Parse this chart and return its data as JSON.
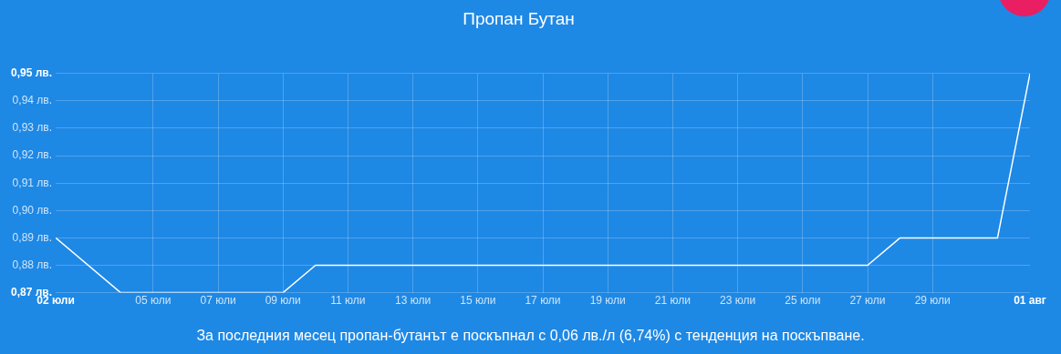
{
  "chart_data": {
    "type": "line",
    "title": "Пропан Бутан",
    "x": [
      "--07-02",
      "--07-04",
      "--07-09",
      "--07-10",
      "--07-27",
      "--07-28",
      "--07-31",
      "--08-01"
    ],
    "series": [
      {
        "color": "#ffffff",
        "values": [
          0.89,
          0.87,
          0.87,
          0.88,
          0.88,
          0.89,
          0.89,
          0.95
        ]
      }
    ],
    "xlim": [
      "--07-02",
      "--08-01"
    ],
    "xticks": [
      {
        "value": "--07-02",
        "label": "02 юли"
      },
      {
        "value": "--07-05",
        "label": "05 юли"
      },
      {
        "value": "--07-07",
        "label": "07 юли"
      },
      {
        "value": "--07-09",
        "label": "09 юли"
      },
      {
        "value": "--07-11",
        "label": "11 юли"
      },
      {
        "value": "--07-13",
        "label": "13 юли"
      },
      {
        "value": "--07-15",
        "label": "15 юли"
      },
      {
        "value": "--07-17",
        "label": "17 юли"
      },
      {
        "value": "--07-19",
        "label": "19 юли"
      },
      {
        "value": "--07-21",
        "label": "21 юли"
      },
      {
        "value": "--07-23",
        "label": "23 юли"
      },
      {
        "value": "--07-25",
        "label": "25 юли"
      },
      {
        "value": "--07-27",
        "label": "27 юли"
      },
      {
        "value": "--07-29",
        "label": "29 юли"
      },
      {
        "value": "--08-01",
        "label": "01 авг"
      }
    ],
    "ylim": [
      0.87,
      0.95
    ],
    "yticks": [
      {
        "value": 0.87,
        "label": "0,87 лв."
      },
      {
        "value": 0.88,
        "label": "0,88 лв."
      },
      {
        "value": 0.89,
        "label": "0,89 лв."
      },
      {
        "value": 0.9,
        "label": "0,90 лв."
      },
      {
        "value": 0.91,
        "label": "0,91 лв."
      },
      {
        "value": 0.92,
        "label": "0,92 лв."
      },
      {
        "value": 0.93,
        "label": "0,93 лв."
      },
      {
        "value": 0.94,
        "label": "0,94 лв."
      },
      {
        "value": 0.95,
        "label": "0,95 лв."
      }
    ],
    "grid": true,
    "legend": false,
    "marker": "none",
    "line_style": "solid",
    "annotations": [
      "За последния месец пропан-бутанът е поскъпнал с 0,06 лв./л (6,74%) с тенденция на поскъпване."
    ]
  }
}
